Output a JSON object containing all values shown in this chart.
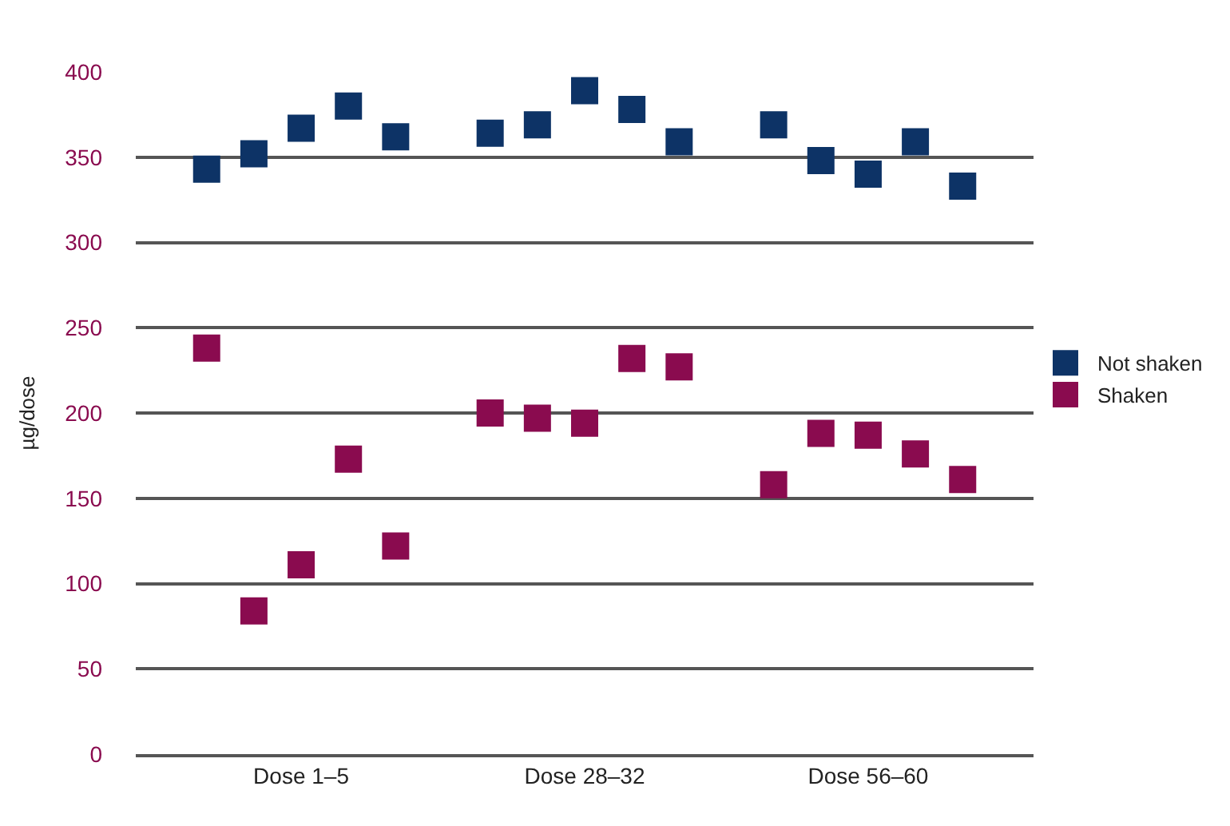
{
  "chart_data": {
    "type": "scatter",
    "ylabel": "µg/dose",
    "categories": [
      null,
      null,
      "Dose 1–5",
      null,
      null,
      null,
      null,
      null,
      "Dose 28–32",
      null,
      null,
      null,
      null,
      null,
      "Dose 56–60",
      null,
      null
    ],
    "series": [
      {
        "name": "Not shaken",
        "color": "#0d3366",
        "values": [
          343,
          352,
          367,
          380,
          362,
          null,
          364,
          369,
          389,
          378,
          359,
          null,
          369,
          348,
          340,
          359,
          333
        ]
      },
      {
        "name": "Shaken",
        "color": "#8a0b4f",
        "values": [
          238,
          84,
          111,
          173,
          122,
          null,
          200,
          197,
          194,
          232,
          227,
          null,
          158,
          188,
          187,
          176,
          161
        ]
      }
    ],
    "ylim": [
      0,
      400
    ],
    "yticks": [
      0,
      50,
      100,
      150,
      200,
      250,
      300,
      350,
      400
    ],
    "grid": "y",
    "legend": "right",
    "marker": "square"
  }
}
